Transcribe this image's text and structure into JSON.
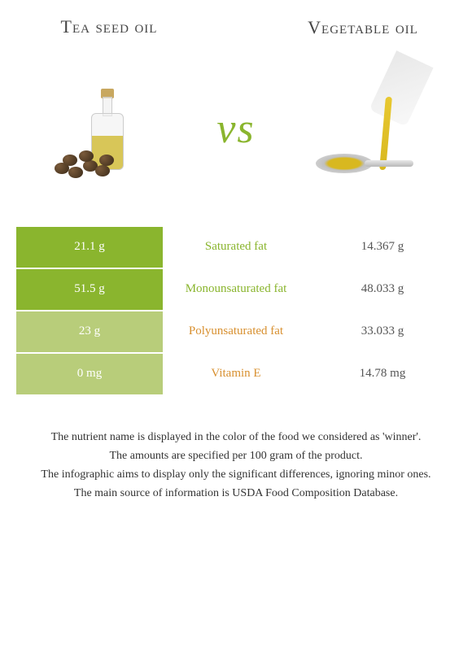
{
  "titles": {
    "left": "Tea seed oil",
    "right": "Vegetable oil"
  },
  "vs": "vs",
  "colors": {
    "left_winner": "#8ab52e",
    "left_loser": "#b8cd7a",
    "mid_left_text": "#8ab52e",
    "mid_right_text": "#d89030"
  },
  "rows": [
    {
      "left": "21.1 g",
      "mid": "Saturated fat",
      "right": "14.367 g",
      "winner": "left"
    },
    {
      "left": "51.5 g",
      "mid": "Monounsaturated fat",
      "right": "48.033 g",
      "winner": "left"
    },
    {
      "left": "23 g",
      "mid": "Polyunsaturated fat",
      "right": "33.033 g",
      "winner": "right"
    },
    {
      "left": "0 mg",
      "mid": "Vitamin E",
      "right": "14.78 mg",
      "winner": "right"
    }
  ],
  "footer": [
    "The nutrient name is displayed in the color of the food we considered as 'winner'.",
    "The amounts are specified per 100 gram of the product.",
    "The infographic aims to display only the significant differences, ignoring minor ones.",
    "The main source of information is USDA Food Composition Database."
  ]
}
